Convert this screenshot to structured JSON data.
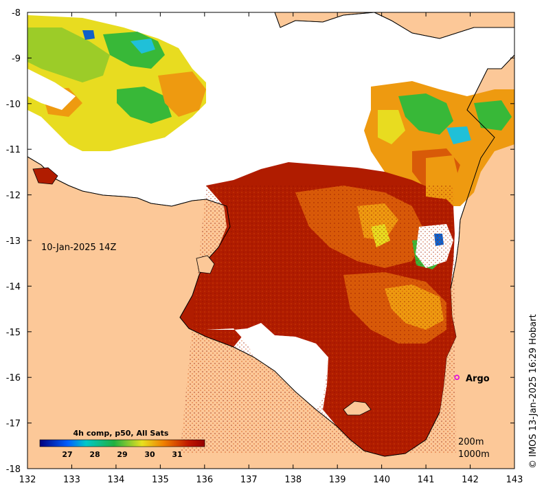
{
  "map": {
    "timestamp_label": "10-Jan-2025 14Z",
    "x_ticks": [
      "132",
      "133",
      "134",
      "135",
      "136",
      "137",
      "138",
      "139",
      "140",
      "141",
      "142",
      "143"
    ],
    "y_ticks": [
      "-8",
      "-9",
      "-10",
      "-11",
      "-12",
      "-13",
      "-14",
      "-15",
      "-16",
      "-17",
      "-18"
    ],
    "lon_range": [
      132,
      143
    ],
    "lat_range": [
      -18,
      -8
    ],
    "colors": {
      "land": "#fcc898",
      "no_data": "#ffffff",
      "sst_hot": "#b01c00",
      "sst_warm": "#d85a08",
      "sst_orange": "#ee9a10",
      "sst_yellow": "#e8dc20",
      "sst_green": "#38b838",
      "sst_cyan": "#20c0d8",
      "sst_blue": "#1060c8"
    }
  },
  "colorbar": {
    "title": "4h comp, p50, All Sats",
    "ticks": [
      "27",
      "28",
      "29",
      "30",
      "31"
    ],
    "range": [
      26,
      32
    ],
    "colors": [
      "#00007f",
      "#0060ff",
      "#00c8c8",
      "#20b040",
      "#e8e020",
      "#f08000",
      "#c01800",
      "#960000"
    ]
  },
  "argo": {
    "label": "Argo",
    "lon": 141.7,
    "lat": -16
  },
  "contours": {
    "label_200m": "200m",
    "label_1000m": "1000m"
  },
  "credit": "© IMOS 13-Jan-2025 16:29 Hobart"
}
